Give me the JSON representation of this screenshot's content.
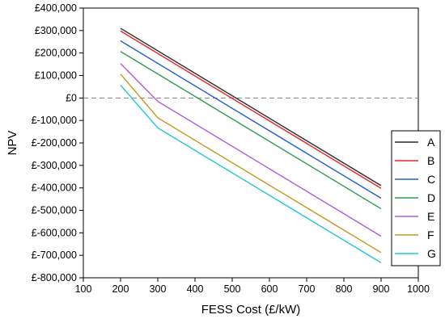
{
  "chart_data": {
    "type": "line",
    "title": "",
    "xlabel": "FESS Cost (£/kW)",
    "ylabel": "NPV",
    "xlim": [
      100,
      1000
    ],
    "ylim": [
      -800000,
      400000
    ],
    "xticks": [
      100,
      200,
      300,
      400,
      500,
      600,
      700,
      800,
      900,
      1000
    ],
    "xtick_labels": [
      "100",
      "200",
      "300",
      "400",
      "500",
      "600",
      "700",
      "800",
      "900",
      "1000"
    ],
    "yticks": [
      400000,
      300000,
      200000,
      100000,
      0,
      -100000,
      -200000,
      -300000,
      -400000,
      -500000,
      -600000,
      -700000,
      -800000
    ],
    "ytick_labels": [
      "£400,000",
      "£300,000",
      "£200,000",
      "£100,000",
      "£0",
      "£-100,000",
      "£-200,000",
      "£-300,000",
      "£-400,000",
      "£-500,000",
      "£-600,000",
      "£-700,000",
      "£-800,000"
    ],
    "reference_line": {
      "y": 0,
      "style": "dashed",
      "color": "#808080"
    },
    "grid": false,
    "legend_position": "right",
    "series": [
      {
        "name": "A",
        "color": "#2b2b2b",
        "x": [
          200,
          900
        ],
        "y": [
          310000,
          -390000
        ]
      },
      {
        "name": "B",
        "color": "#e8242b",
        "x": [
          200,
          900
        ],
        "y": [
          298000,
          -402000
        ]
      },
      {
        "name": "C",
        "color": "#1f5fd1",
        "x": [
          200,
          900
        ],
        "y": [
          254000,
          -446000
        ]
      },
      {
        "name": "D",
        "color": "#2e9e52",
        "x": [
          200,
          900
        ],
        "y": [
          207000,
          -493000
        ]
      },
      {
        "name": "E",
        "color": "#a95de3",
        "x": [
          200,
          300,
          900
        ],
        "y": [
          153000,
          -15000,
          -615000
        ]
      },
      {
        "name": "F",
        "color": "#c8961a",
        "x": [
          200,
          300,
          900
        ],
        "y": [
          106000,
          -88000,
          -688000
        ]
      },
      {
        "name": "G",
        "color": "#1ec8d4",
        "x": [
          200,
          300,
          900
        ],
        "y": [
          57000,
          -133000,
          -733000
        ]
      }
    ]
  }
}
